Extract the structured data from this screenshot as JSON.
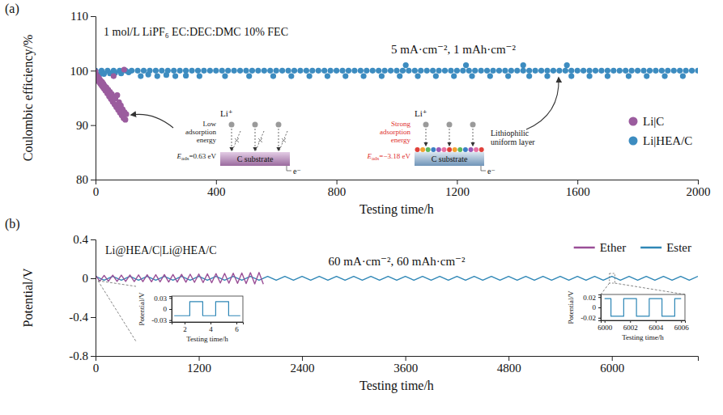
{
  "chart_data": [
    {
      "type": "scatter",
      "panel": "(a)",
      "x_label": "Testing time/h",
      "y_label": "Coulombic efficiency/%",
      "xlim": [
        0,
        2000
      ],
      "ylim": [
        80,
        110
      ],
      "xticks": [
        0,
        400,
        800,
        1200,
        1600,
        2000
      ],
      "yticks": [
        80,
        90,
        100,
        110
      ],
      "legend": "right",
      "marker": "circle",
      "annotations": [
        "1 mol/L LiPF₆ EC:DEC:DMC 10% FEC",
        "5 mA·cm⁻², 1 mAh·cm⁻²"
      ],
      "schematics": [
        {
          "ion": "Li⁺",
          "energy": "Low adsorption energy",
          "e_ads": [
            "E",
            "ads",
            "=0.63 eV"
          ],
          "substrate": "C substrate",
          "electron": "e⁻"
        },
        {
          "ion": "Li⁺",
          "energy": "Strong adsorption energy",
          "e_ads": [
            "E",
            "ads",
            "=−3.18 eV"
          ],
          "substrate": "C substrate",
          "electron": "e⁻",
          "layer": "Lithiophilic uniform layer"
        }
      ],
      "series": [
        {
          "name": "Li|C",
          "color": "#9b5c9e",
          "x": [
            0,
            2,
            4,
            6,
            8,
            10,
            12,
            14,
            16,
            18,
            20,
            22,
            24,
            26,
            28,
            30,
            33,
            36,
            39,
            42,
            45,
            48,
            51,
            54,
            57,
            60,
            60,
            63,
            66,
            69,
            72,
            75,
            78,
            81,
            84,
            87,
            90,
            93,
            96,
            99,
            102,
            95
          ],
          "values": [
            99.8,
            99.2,
            98.6,
            99.0,
            98.2,
            98.7,
            97.9,
            98.4,
            97.6,
            98.1,
            97.3,
            97.9,
            97.0,
            97.6,
            96.7,
            97.2,
            96.3,
            96.9,
            95.8,
            96.5,
            95.3,
            96.1,
            94.8,
            95.7,
            94.3,
            95.2,
            99.0,
            93.8,
            94.9,
            93.3,
            95.5,
            92.8,
            94.2,
            92.3,
            93.6,
            91.8,
            92.9,
            91.3,
            92.4,
            91.0,
            92.0,
            100.2
          ]
        },
        {
          "name": "Li|HEA/C",
          "color": "#3d8cc0",
          "x": [
            0,
            20,
            40,
            60,
            80,
            100,
            120,
            140,
            160,
            180,
            200,
            220,
            240,
            260,
            280,
            300,
            320,
            340,
            360,
            380,
            400,
            420,
            440,
            460,
            480,
            500,
            520,
            540,
            560,
            580,
            600,
            620,
            640,
            660,
            680,
            700,
            720,
            740,
            760,
            780,
            800,
            820,
            840,
            860,
            880,
            900,
            920,
            940,
            960,
            980,
            1000,
            1020,
            1040,
            1060,
            1080,
            1100,
            1120,
            1140,
            1160,
            1180,
            1200,
            1220,
            1240,
            1260,
            1280,
            1300,
            1320,
            1340,
            1360,
            1380,
            1400,
            1420,
            1440,
            1460,
            1480,
            1500,
            1520,
            1540,
            1560,
            1580,
            1600,
            1620,
            1640,
            1660,
            1680,
            1700,
            1720,
            1740,
            1760,
            1780,
            1800,
            1820,
            1840,
            1860,
            1880,
            1900,
            1920,
            1940,
            1960,
            1980,
            2000,
            5,
            12,
            28,
            48,
            65,
            85,
            110,
            150,
            175,
            205,
            235,
            265,
            300,
            345,
            430,
            510,
            590,
            650,
            710,
            770,
            830,
            890,
            950,
            1010,
            1030,
            1070,
            1130,
            1190,
            1230,
            1250,
            1310,
            1370,
            1420,
            1440,
            1500,
            1565,
            1580,
            1640,
            1700,
            1770,
            1830,
            1890,
            1950
          ],
          "values": [
            100,
            100,
            100,
            100,
            100,
            100,
            100,
            100,
            100,
            100,
            100,
            100,
            100,
            100,
            100,
            100,
            100,
            100,
            100,
            100,
            100,
            100,
            100,
            100,
            100,
            100,
            100,
            100,
            100,
            100,
            100,
            100,
            100,
            100,
            100,
            100,
            100,
            100,
            100,
            100,
            100,
            100,
            100,
            100,
            100,
            100,
            100,
            100,
            100,
            100,
            100,
            100,
            100,
            100,
            100,
            100,
            100,
            100,
            100,
            100,
            100,
            100,
            100,
            100,
            100,
            100,
            100,
            100,
            100,
            100,
            100,
            100,
            100,
            100,
            100,
            100,
            100,
            100,
            100,
            100,
            100,
            100,
            100,
            100,
            100,
            100,
            100,
            100,
            100,
            100,
            100,
            100,
            100,
            100,
            100,
            100,
            100,
            100,
            100,
            100,
            100,
            98.6,
            99.2,
            99.4,
            99.5,
            99.6,
            99.5,
            99.7,
            99,
            99.3,
            99,
            99.2,
            99,
            99.1,
            99,
            99,
            99,
            99,
            99,
            99,
            99,
            99,
            99,
            99,
            99,
            101,
            99,
            99,
            99,
            101,
            99,
            99,
            99,
            101,
            99,
            99,
            101,
            99,
            99,
            99,
            99,
            99,
            99,
            99
          ]
        }
      ]
    },
    {
      "type": "line",
      "panel": "(b)",
      "x_label": "Testing time/h",
      "y_label": "Potential/V",
      "xlim": [
        0,
        7000
      ],
      "ylim": [
        -0.8,
        0.4
      ],
      "xticks": [
        0,
        1200,
        2400,
        3600,
        4800,
        6000
      ],
      "yticks": [
        -0.8,
        -0.4,
        0,
        0.4
      ],
      "legend": "top right",
      "annotations": [
        "Li@HEA/C|Li@HEA/C",
        "60 mA·cm⁻², 60 mAh·cm⁻²"
      ],
      "series": [
        {
          "name": "Ether",
          "color": "#9a4f97",
          "x": [
            0,
            50,
            100,
            150,
            200,
            250,
            300,
            350,
            400,
            450,
            500,
            550,
            600,
            650,
            700,
            750,
            800,
            850,
            900,
            950,
            1000,
            1050,
            1100,
            1150,
            1200,
            1250,
            1300,
            1350,
            1400,
            1450,
            1500,
            1550,
            1600,
            1650,
            1700,
            1750,
            1800,
            1850,
            1900,
            1950
          ],
          "values": [
            0.03,
            -0.03,
            0.03,
            -0.03,
            0.032,
            -0.032,
            0.033,
            -0.033,
            0.034,
            -0.034,
            0.035,
            -0.035,
            0.036,
            -0.036,
            0.037,
            -0.037,
            0.038,
            -0.038,
            0.039,
            -0.039,
            0.04,
            -0.04,
            0.042,
            -0.042,
            0.044,
            -0.044,
            0.046,
            -0.046,
            0.048,
            -0.048,
            0.05,
            -0.05,
            0.052,
            -0.052,
            0.055,
            -0.055,
            0.058,
            -0.058,
            0.06,
            -0.06
          ]
        },
        {
          "name": "Ester",
          "color": "#2f87b6",
          "x": [
            0,
            100,
            200,
            300,
            400,
            500,
            600,
            700,
            800,
            900,
            1000,
            1100,
            1200,
            1300,
            1400,
            1500,
            1600,
            1700,
            1800,
            1900,
            2000,
            2100,
            2200,
            2300,
            2400,
            2500,
            2600,
            2700,
            2800,
            2900,
            3000,
            3100,
            3200,
            3300,
            3400,
            3500,
            3600,
            3700,
            3800,
            3900,
            4000,
            4100,
            4200,
            4300,
            4400,
            4500,
            4600,
            4700,
            4800,
            4900,
            5000,
            5100,
            5200,
            5300,
            5400,
            5500,
            5600,
            5700,
            5800,
            5900,
            6000,
            6100,
            6200,
            6300,
            6400,
            6500,
            6600,
            6700,
            6800,
            6900,
            7000
          ],
          "values": [
            0.02,
            -0.02,
            0.02,
            -0.02,
            0.02,
            -0.02,
            0.02,
            -0.02,
            0.02,
            -0.02,
            0.02,
            -0.02,
            0.02,
            -0.02,
            0.02,
            -0.02,
            0.02,
            -0.02,
            0.02,
            -0.02,
            0.02,
            -0.02,
            0.02,
            -0.02,
            0.02,
            -0.02,
            0.02,
            -0.02,
            0.02,
            -0.02,
            0.02,
            -0.02,
            0.02,
            -0.02,
            0.02,
            -0.02,
            0.02,
            -0.02,
            0.02,
            -0.02,
            0.02,
            -0.02,
            0.02,
            -0.02,
            0.02,
            -0.02,
            0.02,
            -0.02,
            0.02,
            -0.02,
            0.02,
            -0.02,
            0.02,
            -0.02,
            0.02,
            -0.02,
            0.02,
            -0.02,
            0.02,
            -0.02,
            0.02,
            -0.02,
            0.02,
            -0.02,
            0.02,
            -0.02,
            0.02,
            -0.02,
            0.02,
            -0.02,
            0.02
          ]
        }
      ]
    },
    {
      "type": "line",
      "x_label": "Testing time/h",
      "y_label": "Potential/V",
      "xlim": [
        1,
        6.5
      ],
      "ylim": [
        -0.035,
        0.035
      ],
      "xticks": [
        2,
        4,
        6
      ],
      "yticks": [
        -0.03,
        0,
        0.03
      ],
      "series": [
        {
          "color": "#2f87b6",
          "x": [
            1.2,
            2.4,
            2.4,
            3.4,
            3.4,
            4.4,
            4.4,
            5.4,
            5.4,
            6.3
          ],
          "values": [
            -0.018,
            -0.018,
            0.02,
            0.02,
            -0.018,
            -0.018,
            0.02,
            0.02,
            -0.018,
            -0.018
          ]
        }
      ]
    },
    {
      "type": "line",
      "x_label": "Testing time/h",
      "y_label": "Potential/V",
      "xlim": [
        5999.7,
        6006.3
      ],
      "ylim": [
        -0.025,
        0.025
      ],
      "xticks": [
        6000,
        6002,
        6004,
        6006
      ],
      "yticks": [
        -0.02,
        0,
        0.02
      ],
      "series": [
        {
          "color": "#2f87b6",
          "x": [
            6000,
            6000.5,
            6000.5,
            6001.5,
            6001.5,
            6002.5,
            6002.5,
            6003.5,
            6003.5,
            6004.5,
            6004.5,
            6005.5,
            6005.5,
            6006
          ],
          "values": [
            0.017,
            0.017,
            -0.017,
            -0.017,
            0.017,
            0.017,
            -0.017,
            -0.017,
            0.017,
            0.017,
            -0.017,
            -0.017,
            0.017,
            0.017
          ]
        }
      ]
    }
  ]
}
